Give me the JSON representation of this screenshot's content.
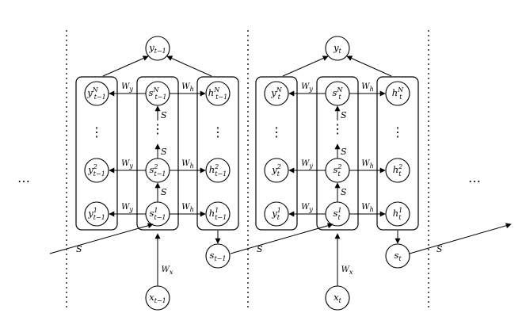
{
  "diagram": {
    "ellipsis": "⋯",
    "vdots": "⋮",
    "s_label": "S",
    "wy_label": "W",
    "wy_sub": "y",
    "wh_label": "W",
    "wh_sub": "h",
    "wx_label": "W",
    "wx_sub": "x",
    "steps": [
      {
        "y_out": {
          "base": "y",
          "sub": "t−1",
          "sup": ""
        },
        "x_in": {
          "base": "x",
          "sub": "t−1",
          "sup": ""
        },
        "s_out": {
          "base": "s",
          "sub": "t−1",
          "sup": ""
        },
        "left_col": [
          {
            "base": "y",
            "sub": "t−1",
            "sup": "N"
          },
          {
            "base": "y",
            "sub": "t−1",
            "sup": "2"
          },
          {
            "base": "y",
            "sub": "t−1",
            "sup": "1"
          }
        ],
        "mid_col": [
          {
            "base": "s",
            "sub": "t−1",
            "sup": "N"
          },
          {
            "base": "s",
            "sub": "t−1",
            "sup": "2"
          },
          {
            "base": "s",
            "sub": "t−1",
            "sup": "1"
          }
        ],
        "right_col": [
          {
            "base": "h",
            "sub": "t−1",
            "sup": "N"
          },
          {
            "base": "h",
            "sub": "t−1",
            "sup": "2"
          },
          {
            "base": "h",
            "sub": "t−1",
            "sup": "1"
          }
        ]
      },
      {
        "y_out": {
          "base": "y",
          "sub": "t",
          "sup": ""
        },
        "x_in": {
          "base": "x",
          "sub": "t",
          "sup": ""
        },
        "s_out": {
          "base": "s",
          "sub": "t",
          "sup": ""
        },
        "left_col": [
          {
            "base": "y",
            "sub": "t",
            "sup": "N"
          },
          {
            "base": "y",
            "sub": "t",
            "sup": "2"
          },
          {
            "base": "y",
            "sub": "t",
            "sup": "1"
          }
        ],
        "mid_col": [
          {
            "base": "s",
            "sub": "t",
            "sup": "N"
          },
          {
            "base": "s",
            "sub": "t",
            "sup": "2"
          },
          {
            "base": "s",
            "sub": "t",
            "sup": "1"
          }
        ],
        "right_col": [
          {
            "base": "h",
            "sub": "t",
            "sup": "N"
          },
          {
            "base": "h",
            "sub": "t",
            "sup": "2"
          },
          {
            "base": "h",
            "sub": "t",
            "sup": "1"
          }
        ]
      }
    ]
  }
}
